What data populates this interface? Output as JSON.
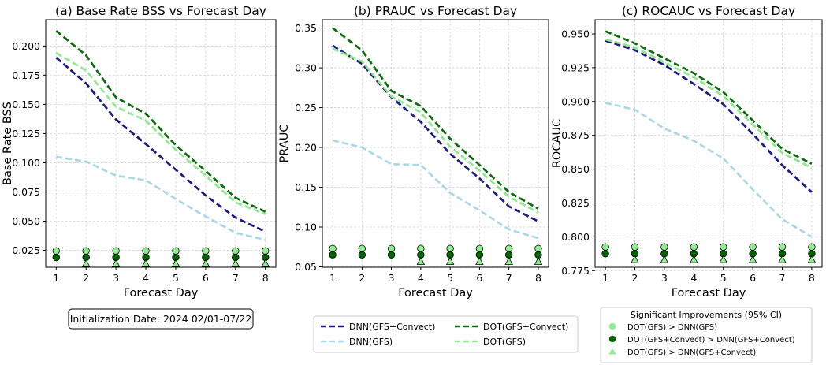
{
  "figure": {
    "annotation": "Initialization Date: 2024 02/01-07/22",
    "line_legend": [
      {
        "key": "dnn_convect",
        "label": "DNN(GFS+Convect)"
      },
      {
        "key": "dot_convect",
        "label": "DOT(GFS+Convect)"
      },
      {
        "key": "dnn_gfs",
        "label": "DNN(GFS)"
      },
      {
        "key": "dot_gfs",
        "label": "DOT(GFS)"
      }
    ],
    "sig_legend": {
      "title": "Significant Improvements (95% CI)",
      "items": [
        {
          "key": "sig1",
          "label": "DOT(GFS) > DNN(GFS)"
        },
        {
          "key": "sig2",
          "label": "DOT(GFS+Convect) > DNN(GFS+Convect)"
        },
        {
          "key": "sig3",
          "label": "DOT(GFS) > DNN(GFS+Convect)"
        }
      ]
    }
  },
  "styles": {
    "dnn_convect": {
      "color": "#1a1a80"
    },
    "dnn_gfs": {
      "color": "#abd8e6"
    },
    "dot_convect": {
      "color": "#0d6b0d"
    },
    "dot_gfs": {
      "color": "#8ee88e"
    },
    "sig1": {
      "color": "#90ee90",
      "marker": "circle"
    },
    "sig2": {
      "color": "#006400",
      "marker": "circle"
    },
    "sig3": {
      "color": "#90ee90",
      "marker": "triangle"
    }
  },
  "chart_data": [
    {
      "type": "line",
      "title": "(a) Base Rate BSS vs Forecast Day",
      "xlabel": "Forecast Day",
      "ylabel": "Base Rate BSS",
      "x": [
        1,
        2,
        3,
        4,
        5,
        6,
        7,
        8
      ],
      "xlim": [
        0.65,
        8.35
      ],
      "ylim": [
        0.0105,
        0.2225
      ],
      "yticks": [
        0.025,
        0.05,
        0.075,
        0.1,
        0.125,
        0.15,
        0.175,
        0.2
      ],
      "ytick_labels": [
        "0.025",
        "0.050",
        "0.075",
        "0.100",
        "0.125",
        "0.150",
        "0.175",
        "0.200"
      ],
      "series": [
        {
          "key": "dnn_convect",
          "name": "DNN(GFS+Convect)",
          "values": [
            0.19,
            0.168,
            0.137,
            0.116,
            0.094,
            0.072,
            0.053,
            0.041
          ]
        },
        {
          "key": "dnn_gfs",
          "name": "DNN(GFS)",
          "values": [
            0.105,
            0.101,
            0.089,
            0.085,
            0.069,
            0.054,
            0.04,
            0.034
          ]
        },
        {
          "key": "dot_convect",
          "name": "DOT(GFS+Convect)",
          "values": [
            0.213,
            0.192,
            0.156,
            0.142,
            0.115,
            0.093,
            0.07,
            0.058
          ]
        },
        {
          "key": "dot_gfs",
          "name": "DOT(GFS)",
          "values": [
            0.194,
            0.179,
            0.148,
            0.136,
            0.111,
            0.089,
            0.066,
            0.056
          ]
        }
      ],
      "markers": [
        {
          "key": "sig1",
          "y": 0.0245,
          "days": [
            1,
            2,
            3,
            4,
            5,
            6,
            7,
            8
          ]
        },
        {
          "key": "sig2",
          "y": 0.019,
          "days": [
            1,
            2,
            3,
            4,
            5,
            6,
            7,
            8
          ]
        },
        {
          "key": "sig3",
          "y": 0.0135,
          "days": [
            2,
            3,
            4,
            5,
            6,
            7,
            8
          ]
        }
      ]
    },
    {
      "type": "line",
      "title": "(b) PRAUC vs Forecast Day",
      "xlabel": "Forecast Day",
      "ylabel": "PRAUC",
      "x": [
        1,
        2,
        3,
        4,
        5,
        6,
        7,
        8
      ],
      "xlim": [
        0.65,
        8.35
      ],
      "ylim": [
        0.0495,
        0.3605
      ],
      "yticks": [
        0.05,
        0.1,
        0.15,
        0.2,
        0.25,
        0.3,
        0.35
      ],
      "ytick_labels": [
        "0.05",
        "0.10",
        "0.15",
        "0.20",
        "0.25",
        "0.30",
        "0.35"
      ],
      "series": [
        {
          "key": "dnn_convect",
          "name": "DNN(GFS+Convect)",
          "values": [
            0.328,
            0.305,
            0.263,
            0.232,
            0.192,
            0.161,
            0.126,
            0.107
          ]
        },
        {
          "key": "dnn_gfs",
          "name": "DNN(GFS)",
          "values": [
            0.209,
            0.2,
            0.179,
            0.178,
            0.143,
            0.121,
            0.097,
            0.086
          ]
        },
        {
          "key": "dot_convect",
          "name": "DOT(GFS+Convect)",
          "values": [
            0.35,
            0.322,
            0.271,
            0.252,
            0.211,
            0.178,
            0.144,
            0.123
          ]
        },
        {
          "key": "dot_gfs",
          "name": "DOT(GFS)",
          "values": [
            0.324,
            0.308,
            0.264,
            0.244,
            0.201,
            0.171,
            0.138,
            0.118
          ]
        }
      ],
      "markers": [
        {
          "key": "sig1",
          "y": 0.073,
          "days": [
            1,
            2,
            3,
            4,
            5,
            6,
            7,
            8
          ]
        },
        {
          "key": "sig2",
          "y": 0.065,
          "days": [
            1,
            2,
            3,
            4,
            5,
            6,
            7,
            8
          ]
        },
        {
          "key": "sig3",
          "y": 0.0565,
          "days": [
            4,
            5,
            6,
            7,
            8
          ]
        }
      ]
    },
    {
      "type": "line",
      "title": "(c) ROCAUC vs Forecast Day",
      "xlabel": "Forecast Day",
      "ylabel": "ROCAUC",
      "x": [
        1,
        2,
        3,
        4,
        5,
        6,
        7,
        8
      ],
      "xlim": [
        0.65,
        8.35
      ],
      "ylim": [
        0.7775,
        0.9605
      ],
      "yticks": [
        0.775,
        0.8,
        0.825,
        0.85,
        0.875,
        0.9,
        0.925,
        0.95
      ],
      "ytick_labels": [
        "0.775",
        "0.800",
        "0.825",
        "0.850",
        "0.875",
        "0.900",
        "0.925",
        "0.950"
      ],
      "series": [
        {
          "key": "dnn_convect",
          "name": "DNN(GFS+Convect)",
          "values": [
            0.945,
            0.938,
            0.927,
            0.913,
            0.898,
            0.876,
            0.853,
            0.833
          ]
        },
        {
          "key": "dnn_gfs",
          "name": "DNN(GFS)",
          "values": [
            0.899,
            0.894,
            0.88,
            0.871,
            0.858,
            0.835,
            0.813,
            0.8
          ]
        },
        {
          "key": "dot_convect",
          "name": "DOT(GFS+Convect)",
          "values": [
            0.952,
            0.943,
            0.932,
            0.921,
            0.907,
            0.886,
            0.865,
            0.854
          ]
        },
        {
          "key": "dot_gfs",
          "name": "DOT(GFS)",
          "values": [
            0.946,
            0.94,
            0.929,
            0.918,
            0.904,
            0.883,
            0.862,
            0.851
          ]
        }
      ],
      "markers": [
        {
          "key": "sig1",
          "y": 0.7925,
          "days": [
            1,
            2,
            3,
            4,
            5,
            6,
            7,
            8
          ]
        },
        {
          "key": "sig2",
          "y": 0.7875,
          "days": [
            1,
            2,
            3,
            4,
            5,
            6,
            7,
            8
          ]
        },
        {
          "key": "sig3",
          "y": 0.783,
          "days": [
            2,
            3,
            4,
            5,
            6,
            7,
            8
          ]
        }
      ]
    }
  ]
}
